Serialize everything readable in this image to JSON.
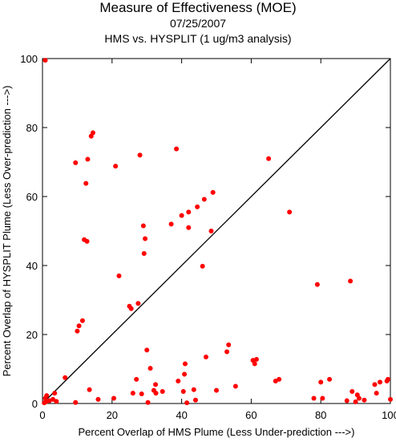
{
  "header": {
    "title": "Measure of Effectiveness (MOE)",
    "date": "07/25/2007",
    "subtitle": "HMS vs. HYSPLIT  (1 ug/m3 analysis)"
  },
  "colors": {
    "points": "#ff0000",
    "axes": "#000000",
    "diagonal": "#000000"
  },
  "chart_data": {
    "type": "scatter",
    "title": "Measure of Effectiveness (MOE)",
    "xlabel": "Percent Overlap of HMS Plume (Less Under-prediction --->)",
    "ylabel": "Percent Overlap of HYSPLIT Plume (Less Over-prediction --->)",
    "xlim": [
      0,
      100
    ],
    "ylim": [
      0,
      100
    ],
    "xticks": [
      0,
      20,
      40,
      60,
      80,
      100
    ],
    "yticks": [
      0,
      20,
      40,
      60,
      80,
      100
    ],
    "grid": false,
    "reference_line": {
      "from": [
        0,
        0
      ],
      "to": [
        100,
        100
      ]
    },
    "points": [
      [
        0.8,
        99.5
      ],
      [
        0.5,
        0.2
      ],
      [
        1.0,
        0.5
      ],
      [
        0.8,
        1.5
      ],
      [
        1.2,
        2.3
      ],
      [
        2.0,
        0.8
      ],
      [
        3.0,
        1.2
      ],
      [
        3.5,
        3.0
      ],
      [
        4.0,
        0.6
      ],
      [
        6.5,
        7.5
      ],
      [
        9.5,
        0.3
      ],
      [
        10.0,
        21.0
      ],
      [
        10.5,
        22.5
      ],
      [
        11.5,
        24.0
      ],
      [
        12.0,
        47.5
      ],
      [
        12.8,
        47.0
      ],
      [
        9.5,
        69.8
      ],
      [
        12.5,
        63.8
      ],
      [
        13.0,
        70.8
      ],
      [
        14.0,
        77.5
      ],
      [
        14.5,
        78.5
      ],
      [
        13.5,
        4.0
      ],
      [
        16.0,
        1.2
      ],
      [
        20.5,
        1.5
      ],
      [
        21.0,
        68.8
      ],
      [
        22.0,
        37.0
      ],
      [
        25.0,
        28.2
      ],
      [
        25.5,
        27.5
      ],
      [
        26.0,
        3.0
      ],
      [
        27.0,
        7.0
      ],
      [
        27.5,
        29.0
      ],
      [
        28.0,
        72.0
      ],
      [
        28.5,
        2.8
      ],
      [
        29.0,
        51.5
      ],
      [
        29.2,
        43.5
      ],
      [
        29.5,
        47.8
      ],
      [
        30.0,
        15.5
      ],
      [
        30.3,
        0.3
      ],
      [
        31.0,
        10.2
      ],
      [
        32.0,
        3.8
      ],
      [
        32.5,
        5.5
      ],
      [
        32.6,
        3.0
      ],
      [
        34.5,
        3.5
      ],
      [
        37.0,
        52.0
      ],
      [
        38.5,
        73.8
      ],
      [
        39.0,
        6.5
      ],
      [
        40.0,
        54.5
      ],
      [
        40.5,
        3.5
      ],
      [
        40.8,
        8.5
      ],
      [
        41.0,
        11.5
      ],
      [
        41.5,
        0.2
      ],
      [
        42.0,
        51.0
      ],
      [
        42.0,
        55.5
      ],
      [
        43.5,
        4.0
      ],
      [
        44.0,
        1.0
      ],
      [
        44.5,
        57.0
      ],
      [
        46.0,
        39.8
      ],
      [
        46.5,
        59.2
      ],
      [
        47.0,
        13.5
      ],
      [
        48.5,
        50.0
      ],
      [
        49.0,
        61.2
      ],
      [
        50.0,
        3.8
      ],
      [
        53.0,
        15.0
      ],
      [
        53.5,
        17.0
      ],
      [
        55.5,
        5.0
      ],
      [
        60.5,
        12.5
      ],
      [
        61.0,
        11.5
      ],
      [
        61.5,
        12.8
      ],
      [
        65.0,
        71.0
      ],
      [
        67.0,
        6.5
      ],
      [
        68.0,
        7.0
      ],
      [
        71.0,
        55.5
      ],
      [
        78.0,
        1.5
      ],
      [
        79.0,
        34.5
      ],
      [
        80.0,
        6.2
      ],
      [
        80.5,
        1.5
      ],
      [
        82.5,
        7.0
      ],
      [
        87.5,
        0.8
      ],
      [
        88.5,
        35.5
      ],
      [
        89.0,
        3.5
      ],
      [
        90.0,
        0.5
      ],
      [
        90.5,
        2.5
      ],
      [
        91.0,
        1.5
      ],
      [
        92.5,
        1.0
      ],
      [
        95.5,
        5.5
      ],
      [
        96.0,
        3.0
      ],
      [
        97.0,
        6.2
      ],
      [
        99.0,
        6.5
      ],
      [
        99.3,
        7.0
      ],
      [
        100.0,
        1.2
      ]
    ]
  }
}
